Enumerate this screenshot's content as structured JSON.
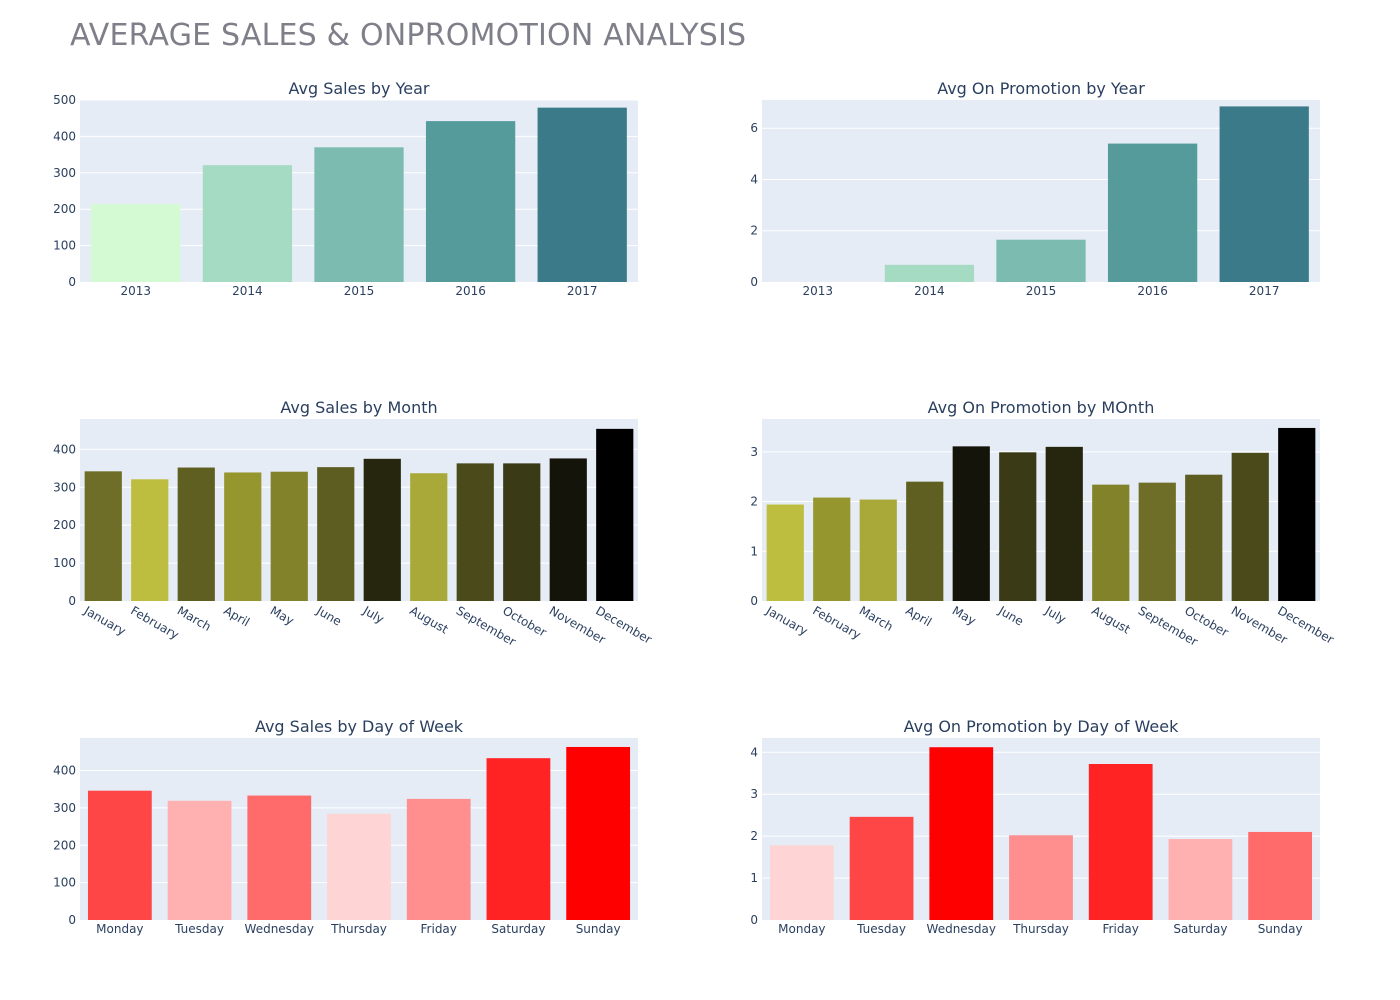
{
  "page": {
    "title": "AVERAGE SALES & ONPROMOTION ANALYSIS"
  },
  "chart_data": [
    {
      "id": "sales-year",
      "type": "bar",
      "title": "Avg Sales by Year",
      "xlabel": "",
      "ylabel": "",
      "categories": [
        "2013",
        "2014",
        "2015",
        "2016",
        "2017"
      ],
      "values": [
        214,
        321,
        370,
        442,
        479
      ],
      "colors": [
        "#d4fad4",
        "#a6dbc3",
        "#7cbbb0",
        "#559b9c",
        "#3b7b89"
      ],
      "ylim": [
        0,
        500
      ],
      "yticks": [
        0,
        100,
        200,
        300,
        400,
        500
      ],
      "tick_angle": 0,
      "grid": true,
      "legend": "none"
    },
    {
      "id": "promo-year",
      "type": "bar",
      "title": "Avg On Promotion by Year",
      "xlabel": "",
      "ylabel": "",
      "categories": [
        "2013",
        "2014",
        "2015",
        "2016",
        "2017"
      ],
      "values": [
        0.0,
        0.67,
        1.65,
        5.4,
        6.85
      ],
      "colors": [
        "#d4fad4",
        "#a6dbc3",
        "#7cbbb0",
        "#559b9c",
        "#3b7b89"
      ],
      "ylim": [
        0,
        7.1
      ],
      "yticks": [
        0,
        2,
        4,
        6
      ],
      "tick_angle": 0,
      "grid": true,
      "legend": "none"
    },
    {
      "id": "sales-month",
      "type": "bar",
      "title": "Avg Sales by Month",
      "xlabel": "",
      "ylabel": "",
      "categories": [
        "January",
        "February",
        "March",
        "April",
        "May",
        "June",
        "July",
        "August",
        "September",
        "October",
        "November",
        "December"
      ],
      "values": [
        342,
        321,
        352,
        339,
        341,
        353,
        375,
        337,
        363,
        363,
        376,
        454
      ],
      "colors": [
        "#6e6e28",
        "#bdbd3f",
        "#5f5f22",
        "#96962f",
        "#82822a",
        "#5d5d22",
        "#26260f",
        "#a9a93a",
        "#4a4a1a",
        "#3a3a16",
        "#14140a",
        "#000000"
      ],
      "ylim": [
        0,
        480
      ],
      "yticks": [
        0,
        100,
        200,
        300,
        400
      ],
      "tick_angle": 30,
      "grid": true,
      "legend": "none"
    },
    {
      "id": "promo-month",
      "type": "bar",
      "title": "Avg On Promotion by MOnth",
      "xlabel": "",
      "ylabel": "",
      "categories": [
        "January",
        "February",
        "March",
        "April",
        "May",
        "June",
        "July",
        "August",
        "September",
        "October",
        "November",
        "December"
      ],
      "values": [
        1.94,
        2.08,
        2.04,
        2.4,
        3.11,
        2.99,
        3.1,
        2.34,
        2.38,
        2.54,
        2.98,
        3.48
      ],
      "colors": [
        "#bdbd3f",
        "#96962f",
        "#a9a93a",
        "#5f5f22",
        "#14140a",
        "#3a3a16",
        "#26260f",
        "#82822a",
        "#6e6e28",
        "#5d5d22",
        "#4a4a1a",
        "#000000"
      ],
      "ylim": [
        0,
        3.66
      ],
      "yticks": [
        0,
        1,
        2,
        3
      ],
      "tick_angle": 30,
      "grid": true,
      "legend": "none"
    },
    {
      "id": "sales-dow",
      "type": "bar",
      "title": "Avg Sales by Day of Week",
      "xlabel": "",
      "ylabel": "",
      "categories": [
        "Monday",
        "Tuesday",
        "Wednesday",
        "Thursday",
        "Friday",
        "Saturday",
        "Sunday"
      ],
      "values": [
        346,
        319,
        333,
        284,
        324,
        433,
        463
      ],
      "colors": [
        "#ff4646",
        "#ffb1b1",
        "#ff6a6a",
        "#ffd4d4",
        "#ff8e8e",
        "#ff2323",
        "#ff0000"
      ],
      "ylim": [
        0,
        487
      ],
      "yticks": [
        0,
        100,
        200,
        300,
        400
      ],
      "tick_angle": 0,
      "grid": true,
      "legend": "none"
    },
    {
      "id": "promo-dow",
      "type": "bar",
      "title": "Avg On Promotion by Day of Week",
      "xlabel": "",
      "ylabel": "",
      "categories": [
        "Monday",
        "Tuesday",
        "Wednesday",
        "Thursday",
        "Friday",
        "Saturday",
        "Sunday"
      ],
      "values": [
        1.78,
        2.46,
        4.12,
        2.02,
        3.72,
        1.93,
        2.1
      ],
      "colors": [
        "#ffd4d4",
        "#ff4646",
        "#ff0000",
        "#ff8e8e",
        "#ff2323",
        "#ffb1b1",
        "#ff6a6a"
      ],
      "ylim": [
        0,
        4.34
      ],
      "yticks": [
        0,
        1,
        2,
        3,
        4
      ],
      "tick_angle": 0,
      "grid": true,
      "legend": "none"
    }
  ]
}
